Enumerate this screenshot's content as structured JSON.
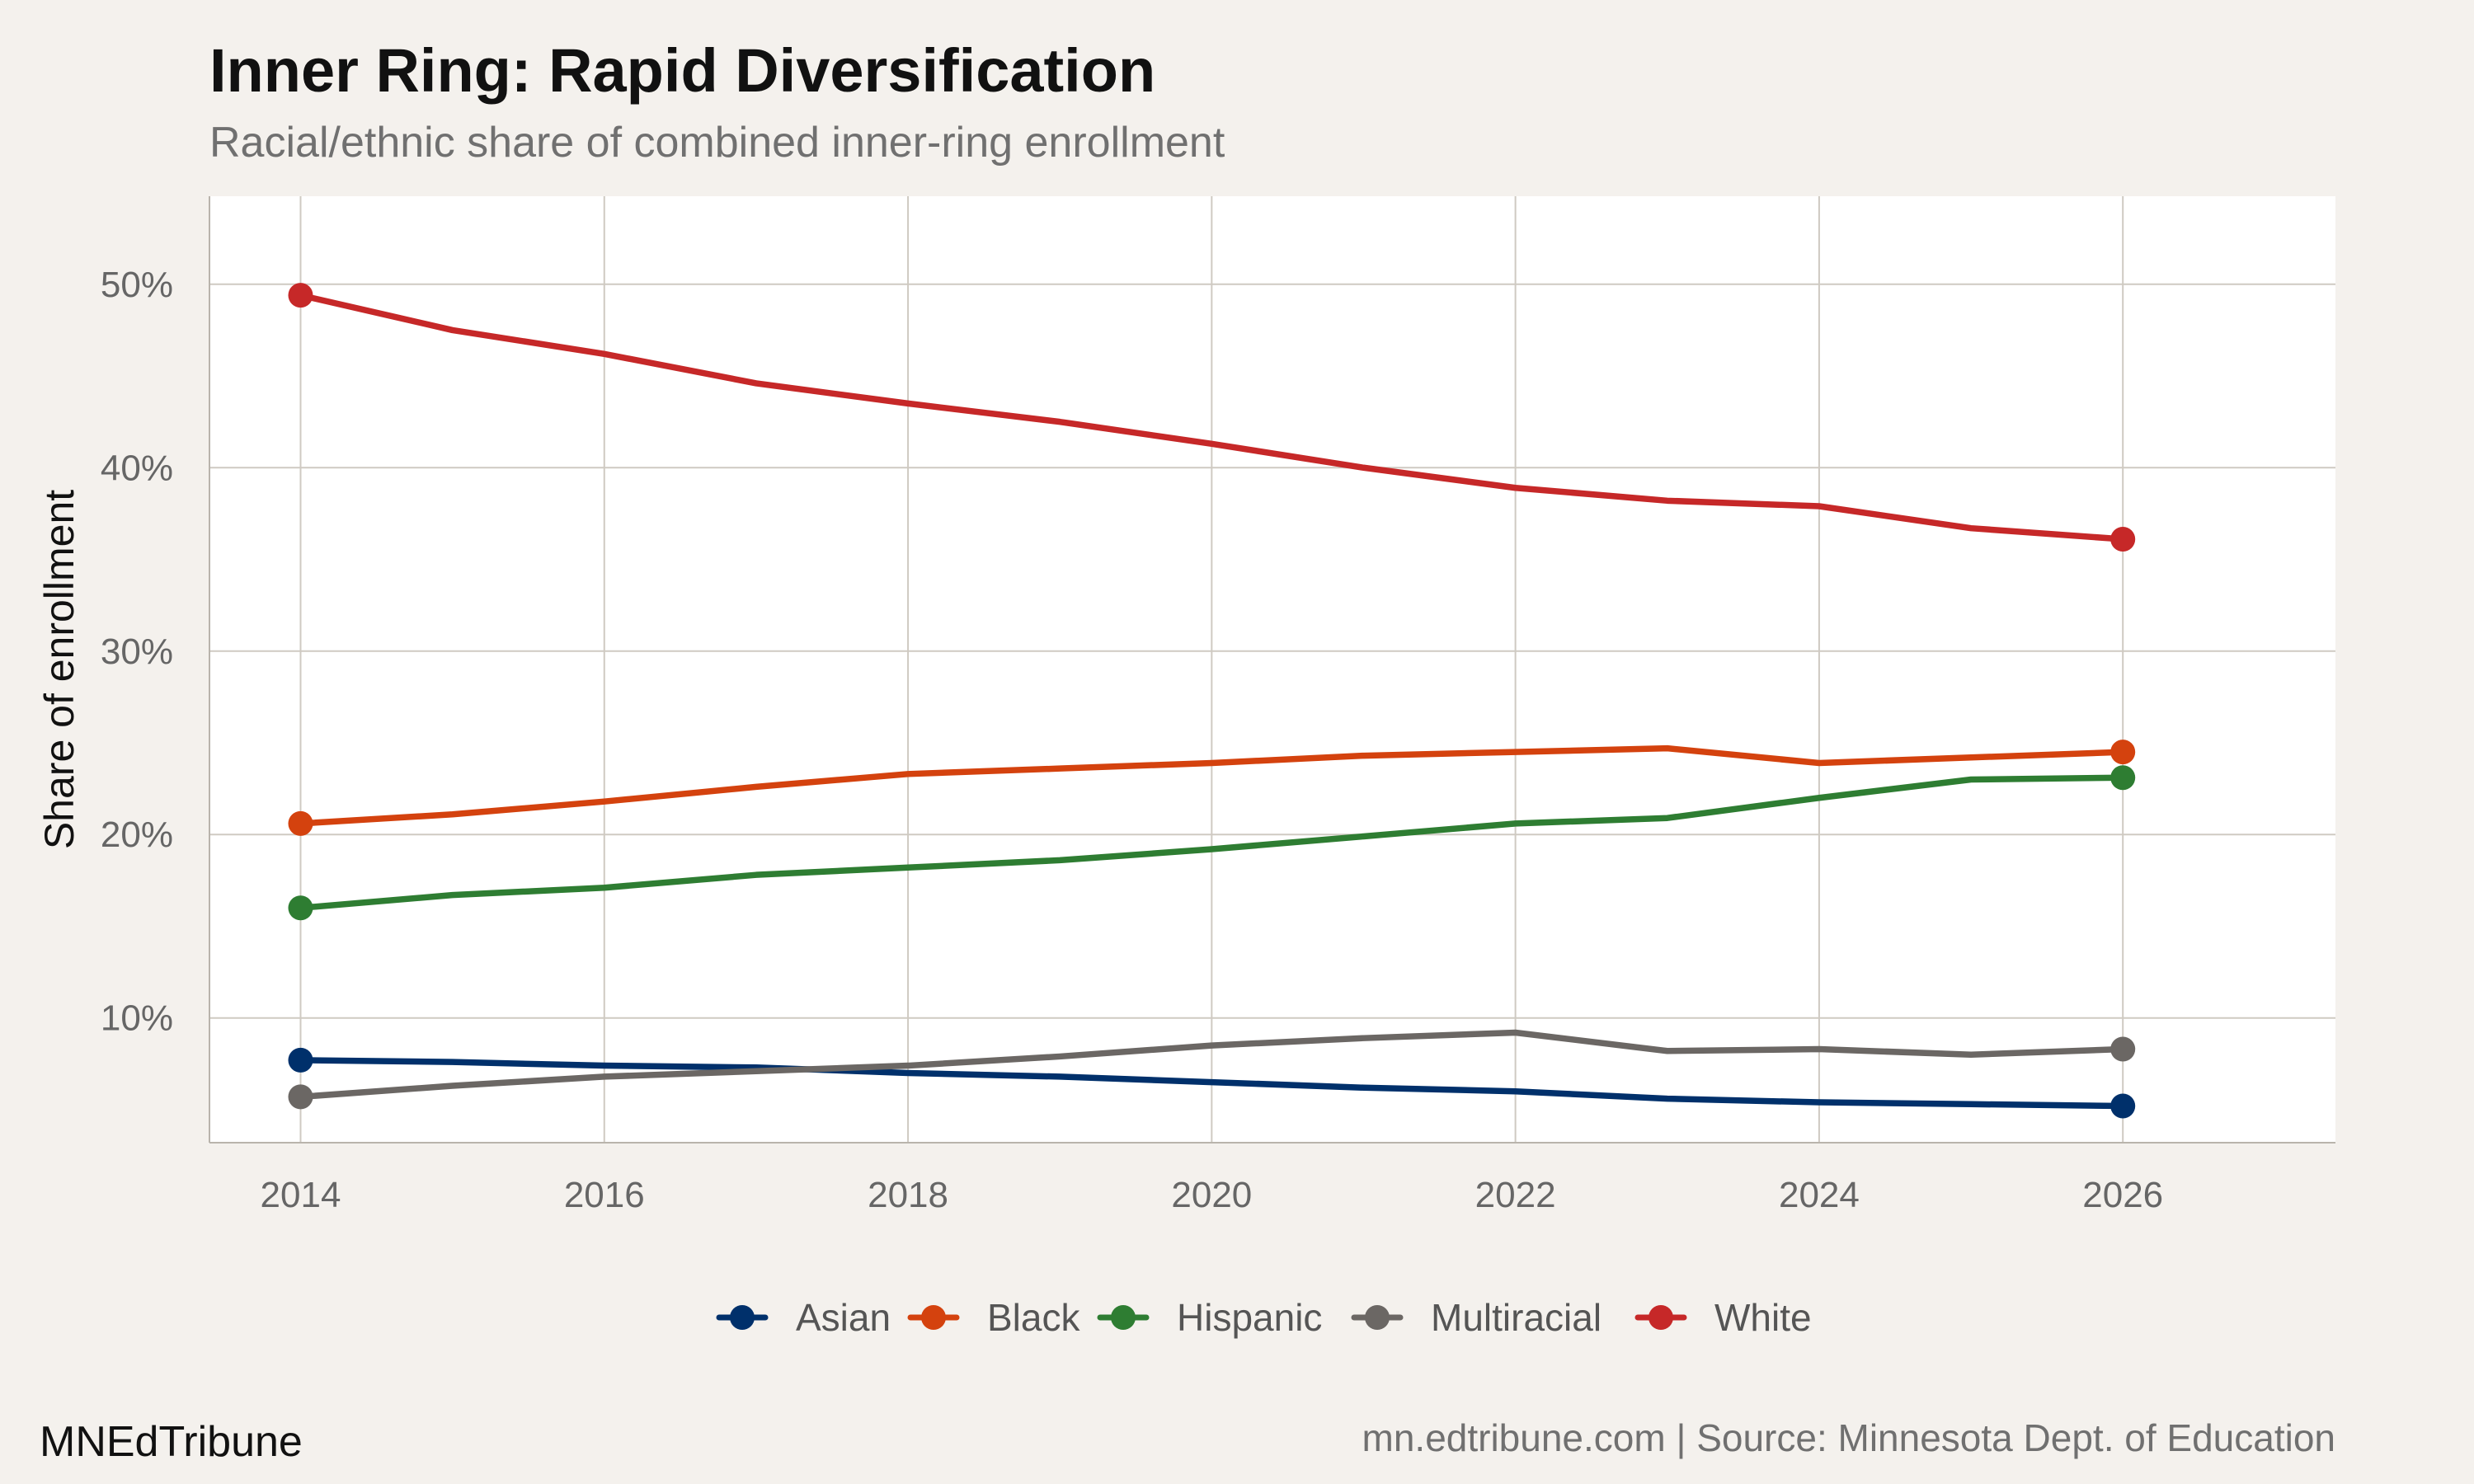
{
  "header": {
    "title": "Inner Ring: Rapid Diversification",
    "subtitle": "Racial/ethnic share of combined inner-ring enrollment"
  },
  "footer": {
    "brand": "MNEdTribune",
    "source": "mn.edtribune.com | Source: Minnesota Dept. of Education"
  },
  "chart_data": {
    "type": "line",
    "title": "Inner Ring: Rapid Diversification",
    "subtitle": "Racial/ethnic share of combined inner-ring enrollment",
    "xlabel": "",
    "ylabel": "Share of enrollment",
    "x": [
      2014,
      2015,
      2016,
      2017,
      2018,
      2019,
      2020,
      2021,
      2022,
      2023,
      2024,
      2025,
      2026
    ],
    "xlim": [
      2013.4,
      2027.4
    ],
    "ylim": [
      3.2,
      54.8
    ],
    "x_ticks": [
      2014,
      2016,
      2018,
      2020,
      2022,
      2024,
      2026
    ],
    "x_tick_labels": [
      "2014",
      "2016",
      "2018",
      "2020",
      "2022",
      "2024",
      "2026"
    ],
    "y_ticks": [
      10,
      20,
      30,
      40,
      50
    ],
    "y_tick_labels": [
      "10%",
      "20%",
      "30%",
      "40%",
      "50%"
    ],
    "grid": true,
    "legend_position": "bottom",
    "series": [
      {
        "name": "Asian",
        "color": "#00306b",
        "values": [
          7.7,
          7.6,
          7.4,
          7.3,
          7.0,
          6.8,
          6.5,
          6.2,
          6.0,
          5.6,
          5.4,
          5.3,
          5.2
        ]
      },
      {
        "name": "Black",
        "color": "#d4420e",
        "values": [
          20.6,
          21.1,
          21.8,
          22.6,
          23.3,
          23.6,
          23.9,
          24.3,
          24.5,
          24.7,
          23.9,
          24.2,
          24.5
        ]
      },
      {
        "name": "Hispanic",
        "color": "#2e7d32",
        "values": [
          16.0,
          16.7,
          17.1,
          17.8,
          18.2,
          18.6,
          19.2,
          19.9,
          20.6,
          20.9,
          22.0,
          23.0,
          23.1
        ]
      },
      {
        "name": "Multiracial",
        "color": "#6b6764",
        "values": [
          5.7,
          6.3,
          6.8,
          7.1,
          7.4,
          7.9,
          8.5,
          8.9,
          9.2,
          8.2,
          8.3,
          8.0,
          8.3
        ]
      },
      {
        "name": "White",
        "color": "#c62828",
        "values": [
          49.4,
          47.5,
          46.2,
          44.6,
          43.5,
          42.5,
          41.3,
          40.0,
          38.9,
          38.2,
          37.9,
          36.7,
          36.1
        ]
      }
    ]
  }
}
